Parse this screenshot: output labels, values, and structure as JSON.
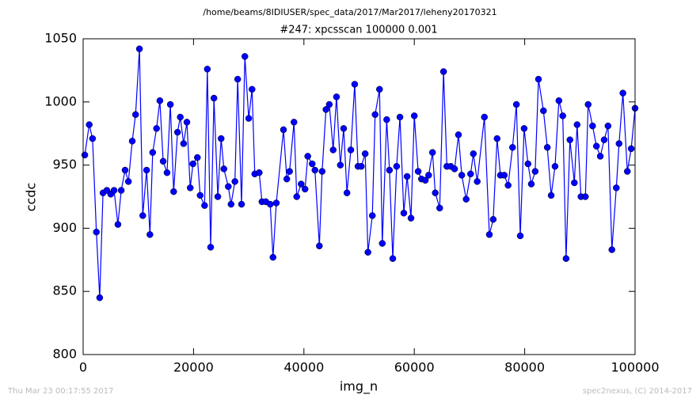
{
  "chart_data": {
    "type": "line",
    "suptitle": "/home/beams/8IDIUSER/spec_data/2017/Mar2017/leheny20170321",
    "title": "#247: xpcsscan 100000 0.001",
    "xlabel": "img_n",
    "ylabel": "ccdc",
    "xlim": [
      0,
      100000
    ],
    "xticks": [
      0,
      20000,
      40000,
      60000,
      80000,
      100000
    ],
    "ylim": [
      800,
      1050
    ],
    "yticks": [
      800,
      850,
      900,
      950,
      1000,
      1050
    ],
    "grid": false,
    "series": [
      {
        "name": "ccdc",
        "color": "#0000ff",
        "x": [
          300,
          1100,
          1700,
          2400,
          3000,
          3600,
          4300,
          5000,
          5600,
          6300,
          6900,
          7600,
          8200,
          8900,
          9500,
          10200,
          10800,
          11500,
          12100,
          12600,
          13300,
          13900,
          14500,
          15200,
          15800,
          16400,
          17100,
          17600,
          18200,
          18800,
          19400,
          19900,
          20700,
          21200,
          22000,
          22500,
          23100,
          23700,
          24400,
          25000,
          25500,
          26300,
          26800,
          27500,
          28000,
          28700,
          29300,
          30000,
          30600,
          31100,
          31900,
          32400,
          33100,
          33900,
          34400,
          35000,
          36300,
          36900,
          37400,
          38200,
          38700,
          39500,
          40200,
          40700,
          41500,
          42000,
          42800,
          43300,
          44000,
          44600,
          45300,
          45900,
          46600,
          47200,
          47800,
          48500,
          49200,
          49800,
          50400,
          51100,
          51600,
          52400,
          52900,
          53700,
          54200,
          55000,
          55500,
          56100,
          56800,
          57400,
          58100,
          58700,
          59400,
          60000,
          60700,
          61300,
          62000,
          62600,
          63300,
          63800,
          64600,
          65300,
          65900,
          66600,
          67300,
          68000,
          68600,
          69400,
          70200,
          70700,
          71400,
          72700,
          73600,
          74300,
          75000,
          75600,
          76300,
          77000,
          77800,
          78500,
          79200,
          79900,
          80600,
          81200,
          81900,
          82500,
          83400,
          84100,
          84800,
          85500,
          86200,
          86900,
          87500,
          88200,
          89000,
          89500,
          90200,
          91000,
          91500,
          92300,
          93000,
          93700,
          94400,
          95100,
          95800,
          96600,
          97100,
          97800,
          98600,
          99300,
          100000
        ],
        "values": [
          958,
          982,
          971,
          897,
          845,
          928,
          930,
          927,
          930,
          903,
          930,
          946,
          937,
          969,
          990,
          1042,
          910,
          946,
          895,
          960,
          979,
          1001,
          953,
          944,
          998,
          929,
          976,
          988,
          967,
          984,
          932,
          951,
          956,
          926,
          918,
          1026,
          885,
          1003,
          925,
          971,
          947,
          933,
          919,
          937,
          1018,
          919,
          1036,
          987,
          1010,
          943,
          944,
          921,
          921,
          919,
          877,
          920,
          978,
          939,
          945,
          984,
          925,
          935,
          931,
          957,
          951,
          946,
          886,
          945,
          994,
          998,
          962,
          1004,
          950,
          979,
          928,
          962,
          1014,
          949,
          949,
          959,
          881,
          910,
          990,
          1010,
          888,
          986,
          946,
          876,
          949,
          988,
          912,
          941,
          908,
          989,
          945,
          939,
          938,
          942,
          960,
          928,
          916,
          1024,
          949,
          949,
          947,
          974,
          942,
          923,
          943,
          959,
          937,
          988,
          895,
          907,
          971,
          942,
          942,
          934,
          964,
          998,
          894,
          979,
          951,
          935,
          945,
          1018,
          993,
          964,
          926,
          949,
          1001,
          989,
          876,
          970,
          936,
          982,
          925,
          925,
          998,
          981,
          965,
          957,
          970,
          981,
          883,
          932,
          967,
          1007,
          945,
          963,
          995
        ]
      }
    ]
  },
  "footer_left": "Thu Mar 23 00:17:55 2017",
  "footer_right": "spec2nexus, (C) 2014-2017"
}
